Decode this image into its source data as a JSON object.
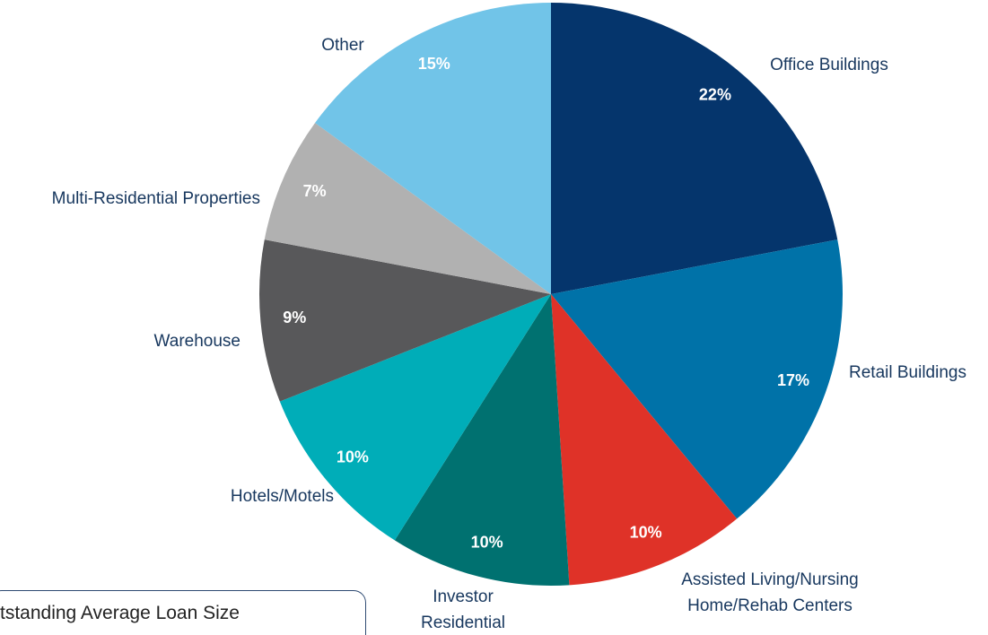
{
  "chart_data": {
    "type": "pie",
    "categories": [
      "Office Buildings",
      "Retail Buildings",
      "Assisted Living/Nursing Home/Rehab Centers",
      "Investor Residential",
      "Hotels/Motels",
      "Warehouse",
      "Multi-Residential Properties",
      "Other"
    ],
    "values": [
      22,
      17,
      10,
      10,
      10,
      9,
      7,
      15
    ],
    "value_labels": [
      "22%",
      "17%",
      "10%",
      "10%",
      "10%",
      "9%",
      "7%",
      "15%"
    ],
    "colors": [
      "#05356c",
      "#0072a8",
      "#df3228",
      "#007170",
      "#00adb8",
      "#58585a",
      "#b1b1b1",
      "#71c4e8"
    ],
    "annotations": [
      "tstanding Average Loan Size"
    ]
  }
}
